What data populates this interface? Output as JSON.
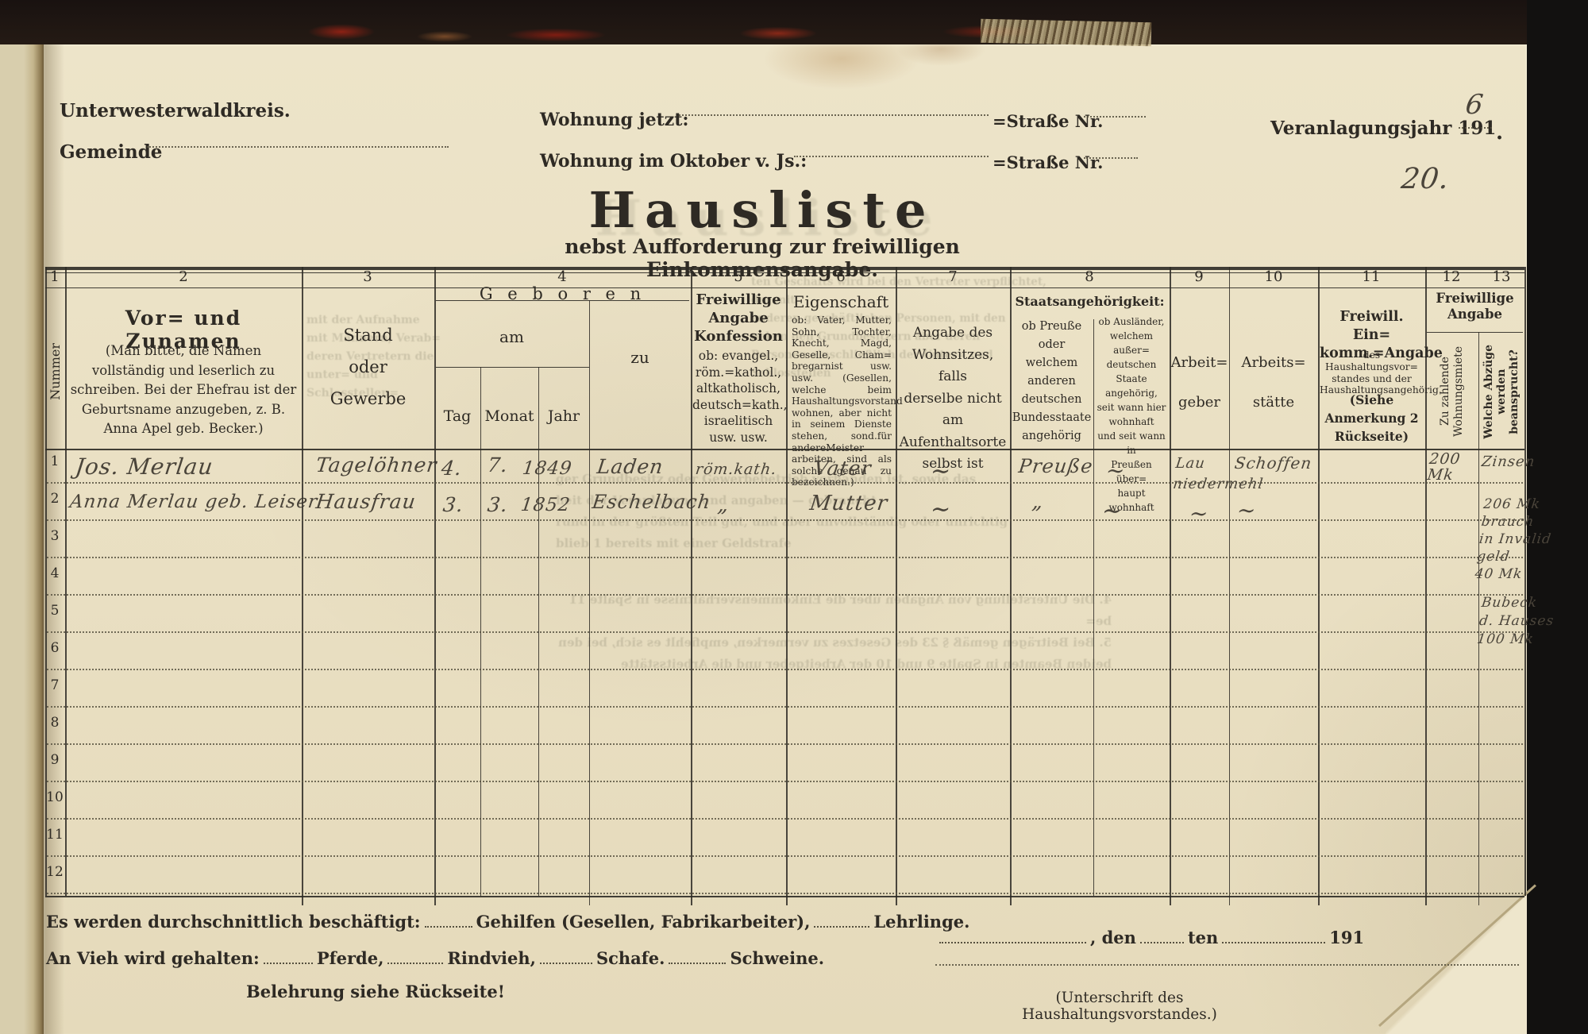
{
  "page": {
    "kreis": "Unterwesterwaldkreis.",
    "gemeinde_label": "Gemeinde",
    "wohnung_jetzt_label": "Wohnung jetzt:",
    "wohnung_oktober_label": "Wohnung im Oktober v. Js.:",
    "strasse_nr_label": "=Straße Nr.",
    "veranlagung_label": "Veranlagungsjahr 191",
    "veranlagung_year_hand": "6",
    "veranlagung_suffix": ".",
    "page_number_hand": "20.",
    "title": "Hausliste",
    "subtitle": "nebst Aufforderung zur freiwilligen Einkommensangabe."
  },
  "table": {
    "col_numbers": [
      "1",
      "2",
      "3",
      "4",
      "5",
      "6",
      "7",
      "8",
      "9",
      "10",
      "11",
      "12",
      "13"
    ],
    "headers": {
      "nummer": "Nummer",
      "namen_title": "Vor= und Zunamen",
      "namen_note": "(Man bittet, die Namen vollständig und leserlich zu schreiben. Bei der Ehefrau ist der Geburtsname anzugeben, z. B. Anna Apel geb. Becker.)",
      "stand": "Stand\noder\nGewerbe",
      "geboren": "G e b o r e n",
      "geboren_am": "am",
      "geboren_zu": "zu",
      "tag": "Tag",
      "monat": "Monat",
      "jahr": "Jahr",
      "konfession_title": "Freiwillige\nAngabe\nKonfession",
      "konfession_note": "ob: evangel.,\nröm.=kathol.,\naltkatholisch,\ndeutsch=kath.,\nisraelitisch\nusw. usw.",
      "eigenschaft_title": "Eigenschaft",
      "eigenschaft_note": "ob: Vater, Mutter, Sohn, Tochter, Knecht, Magd, Geselle, Cham= bregarnist usw. usw. (Gesellen, welche beim Haushaltungsvorstand wohnen, aber nicht in seinem Dienste stehen, sond.für andereMeister arbeiten, sind als solche genau zu bezeichnen.)",
      "wohnsitz_note": "Angabe des\nWohnsitzes, falls\nderselbe nicht am\nAufenthaltsorte\nselbst ist",
      "staat_title": "Staatsangehörigkeit:",
      "staat_inland": "ob Preuße\noder welchem\nanderen\ndeutschen\nBundesstaate\nangehörig",
      "staat_ausland": "ob Ausländer,\nwelchem außer=\ndeutschen Staate\nangehörig,\nseit wann hier\nwohnhaft\nund seit wann in\nPreußen über=\nhaupt wohnhaft",
      "arbeitgeber": "Arbeit=\ngeber",
      "arbeitsstaette": "Arbeits=\nstätte",
      "einkommen_title": "Freiwill. Ein=\nkomm.=Angabe",
      "einkommen_note": "des Haushaltungsvor= standes und der Haushaltungsangehörig.",
      "einkommen_ref": "(Siehe\nAnmerkung 2\nRückseite)",
      "freiwillige_angabe": "Freiwillige\nAngabe",
      "miete_rot": "Zu zahlende\nWohnungsmiete",
      "abzuege_rot": "Welche Abzüge\nwerden\nbeansprucht?"
    },
    "rows": [
      {
        "num": "1",
        "name": "Jos. Merlau",
        "stand": "Tagelöhner",
        "tag": "4.",
        "monat": "7.",
        "jahr": "1849",
        "ort": "Laden",
        "konfession": "röm.kath.",
        "eigenschaft": "Vater",
        "wohnsitz": "∼",
        "staat_inland": "Preuße",
        "staat_ausland": "∼",
        "arbeitgeber": "Lau\nniedermehl",
        "arbeitsstaette": "Schoffen",
        "miete": "200 Mk",
        "abzuege": "Zinsen"
      },
      {
        "num": "2",
        "name": "Anna Merlau geb. Leiser",
        "stand": "Hausfrau",
        "tag": "3.",
        "monat": "3.",
        "jahr": "1852",
        "ort": "Eschelbach",
        "konfession": "„",
        "eigenschaft": "Mutter",
        "wohnsitz": "∼",
        "staat_inland": "„",
        "staat_ausland": "∼",
        "arbeitgeber": "∼",
        "arbeitsstaette": "∼"
      },
      {
        "num": "3"
      },
      {
        "num": "4"
      },
      {
        "num": "5"
      },
      {
        "num": "6"
      },
      {
        "num": "7"
      },
      {
        "num": "8"
      },
      {
        "num": "9"
      },
      {
        "num": "10"
      },
      {
        "num": "11"
      },
      {
        "num": "12"
      }
    ],
    "col13_block1": "206 Mk\nbrauch\nin Invalid\ngeld\n40 Mk",
    "col13_block2": "Bubeck\nd. Hauses\n100 Mk"
  },
  "footer": {
    "beschaeftigt_label": "Es werden durchschnittlich beschäftigt:",
    "gehilfen_label": "Gehilfen (Gesellen, Fabrikarbeiter),",
    "lehrlinge_label": "Lehrlinge.",
    "vieh_label": "An Vieh wird gehalten:",
    "pferde": "Pferde,",
    "rindvieh": "Rindvieh,",
    "schafe": "Schafe.",
    "schweine": "Schweine.",
    "belehrung": "Belehrung siehe Rückseite!",
    "den": ", den",
    "ten": "ten",
    "jahr_prefix": "191",
    "unterschrift": "(Unterschrift des Haushaltungsvorstandes.)"
  },
  "bleedthrough": {
    "lines": [
      "mit der Aufnahme\nmit Männern, Verab=\nderen Vertretern die\nunter= und Schlosstellen=",
      "ten Geschäfts wird bei den Vertreter verpflichtet, der mit\nanderen geschäftlichen Personen, mit den\nneben den Grundbesitzern aber deren\nPersonen einschließlich der Unter= und Schlosstellen",
      "ger Grundbesitz oder Gewerbebetrieb vorhanden ist, sowie das\nheit der Veranlagung und angaben — gebraucht\nrund in der größten Teil gut, und aber unvollständig oder unrichtig\nblieb 1 bereits mit einer Geldstrafe",
      "4. Die Unterstellung von Angaben über die Einkommensverhältnisse in Spalte 11 be=\n5. Bei Beiträgen gemäß § 23 des Gesetzes zu vermerken, empfiehlt es sich, bei den\nbeiden Beamten in Spalte 9 und 10 der Arbeitgeber und die Arbeitsstätte"
    ]
  },
  "colors": {
    "paper": "#ede4c9",
    "ink": "#2e2a24",
    "hand_ink": "#4a443a",
    "cover_red": "#8a2016"
  }
}
